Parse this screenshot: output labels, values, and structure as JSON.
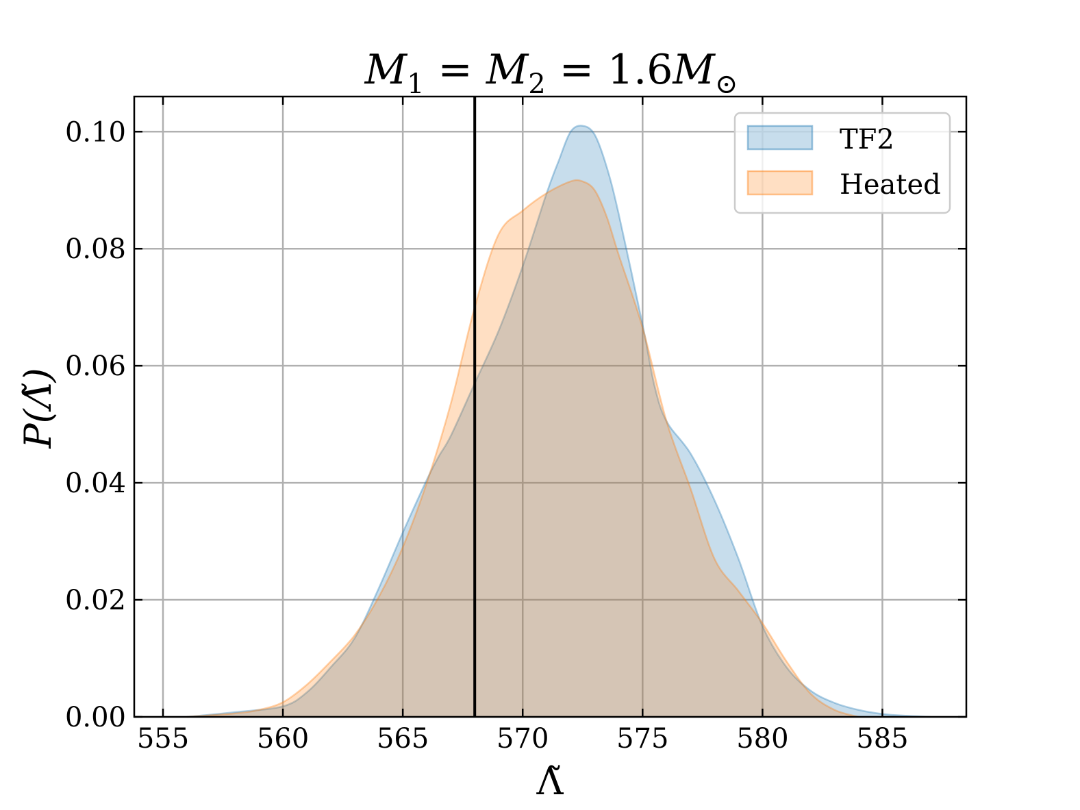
{
  "chart_data": {
    "type": "area",
    "title": {
      "lhs1": "M",
      "sub1": "1",
      "eq1": "=",
      "lhs2": "M",
      "sub2": "2",
      "eq2": "=",
      "value": "1.6",
      "unit": "M",
      "unit_sub": "⊙"
    },
    "xlabel": "Λ̃",
    "ylabel": "P(Λ̃)",
    "xlim": [
      553.8,
      588.5
    ],
    "ylim": [
      0,
      0.106
    ],
    "xticks": [
      555,
      560,
      565,
      570,
      575,
      580,
      585
    ],
    "xtick_labels": [
      "555",
      "560",
      "565",
      "570",
      "575",
      "580",
      "585"
    ],
    "yticks": [
      0,
      0.02,
      0.04,
      0.06,
      0.08,
      0.1
    ],
    "ytick_labels": [
      "0.00",
      "0.02",
      "0.04",
      "0.06",
      "0.08",
      "0.10"
    ],
    "grid": true,
    "legend_position": "top-right",
    "vline": 568,
    "series": [
      {
        "name": "TF2",
        "color": "#1f77b4",
        "x": [
          556,
          558,
          560,
          561,
          562,
          563,
          564,
          565,
          566,
          566.5,
          567,
          568,
          569,
          570,
          571,
          571.5,
          572,
          572.5,
          573,
          573.5,
          574,
          575,
          575.5,
          576,
          577,
          578,
          579,
          580,
          581,
          582,
          583,
          584,
          585,
          586,
          587
        ],
        "y": [
          0,
          0.0008,
          0.0018,
          0.0042,
          0.0085,
          0.0135,
          0.022,
          0.0315,
          0.0405,
          0.0445,
          0.048,
          0.057,
          0.066,
          0.077,
          0.0895,
          0.095,
          0.1,
          0.101,
          0.0995,
          0.094,
          0.086,
          0.067,
          0.0565,
          0.0505,
          0.045,
          0.037,
          0.027,
          0.0155,
          0.0085,
          0.0045,
          0.0024,
          0.0012,
          0.0005,
          0.0002,
          0
        ]
      },
      {
        "name": "Heated",
        "color": "#ff7f0e",
        "x": [
          556,
          558,
          559,
          560,
          561,
          562,
          563,
          564,
          565,
          566,
          567,
          568,
          569,
          570,
          571,
          572,
          572.5,
          573,
          573.5,
          574,
          575,
          576,
          577,
          578,
          579,
          580,
          581,
          582,
          583,
          584
        ],
        "y": [
          0,
          0.0006,
          0.0012,
          0.0025,
          0.0055,
          0.0095,
          0.014,
          0.0205,
          0.029,
          0.04,
          0.0535,
          0.07,
          0.0825,
          0.0865,
          0.0895,
          0.0915,
          0.0915,
          0.09,
          0.0855,
          0.079,
          0.0665,
          0.0505,
          0.039,
          0.027,
          0.0215,
          0.016,
          0.0095,
          0.004,
          0.0012,
          0
        ]
      }
    ]
  }
}
